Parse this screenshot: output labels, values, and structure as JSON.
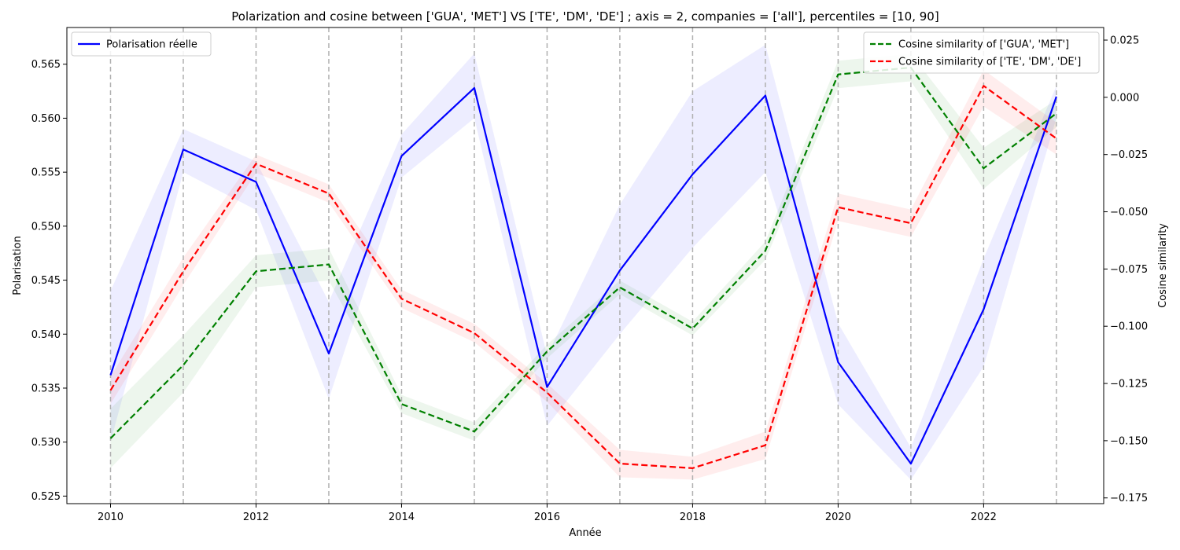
{
  "chart_data": {
    "type": "line",
    "title": "Polarization and cosine between ['GUA', 'MET'] VS ['TE', 'DM', 'DE'] ; axis = 2, companies = ['all'], percentiles = [10, 90]",
    "xlabel": "Année",
    "ylabel_left": "Polarisation",
    "ylabel_right": "Cosine similarity",
    "x": [
      2010,
      2011,
      2012,
      2013,
      2014,
      2015,
      2016,
      2017,
      2018,
      2019,
      2020,
      2021,
      2022,
      2023
    ],
    "x_ticks": [
      2010,
      2012,
      2014,
      2016,
      2018,
      2020,
      2022
    ],
    "xlim": [
      2009.4,
      2023.65
    ],
    "ylim_left": [
      0.5243,
      0.5684
    ],
    "ylim_right": [
      -0.1775,
      0.0305
    ],
    "yticks_left": [
      0.525,
      0.53,
      0.535,
      0.54,
      0.545,
      0.55,
      0.555,
      0.56,
      0.565
    ],
    "yticks_left_labels": [
      "0.525",
      "0.530",
      "0.535",
      "0.540",
      "0.545",
      "0.550",
      "0.555",
      "0.560",
      "0.565"
    ],
    "yticks_right": [
      -0.175,
      -0.15,
      -0.125,
      -0.1,
      -0.075,
      -0.05,
      -0.025,
      0.0,
      0.025
    ],
    "yticks_right_labels": [
      "−0.175",
      "−0.150",
      "−0.125",
      "−0.100",
      "−0.075",
      "−0.050",
      "−0.025",
      "0.000",
      "0.025"
    ],
    "vlines": [
      2010,
      2011,
      2012,
      2013,
      2014,
      2015,
      2016,
      2017,
      2018,
      2019,
      2020,
      2021,
      2022,
      2023
    ],
    "series": [
      {
        "name": "Polarisation réelle",
        "axis": "left",
        "color": "#0000ff",
        "dash": "solid",
        "values": [
          0.5362,
          0.5571,
          0.5541,
          0.5382,
          0.5565,
          0.5628,
          0.5351,
          0.5459,
          0.5548,
          0.5621,
          0.5374,
          0.528,
          0.5423,
          0.562
        ],
        "lower": [
          0.53,
          0.555,
          0.5515,
          0.534,
          0.5545,
          0.56,
          0.5315,
          0.54,
          0.548,
          0.555,
          0.5335,
          0.5265,
          0.537,
          0.56
        ],
        "upper": [
          0.544,
          0.559,
          0.556,
          0.543,
          0.5585,
          0.566,
          0.538,
          0.552,
          0.5625,
          0.5668,
          0.541,
          0.5295,
          0.547,
          0.563
        ]
      },
      {
        "name": "Cosine similarity of ['GUA', 'MET']",
        "axis": "right",
        "color": "#008000",
        "dash": "dashed",
        "values": [
          -0.149,
          -0.117,
          -0.076,
          -0.073,
          -0.134,
          -0.146,
          -0.111,
          -0.083,
          -0.101,
          -0.067,
          0.01,
          0.013,
          -0.031,
          -0.007
        ],
        "lower": [
          -0.162,
          -0.129,
          -0.083,
          -0.08,
          -0.138,
          -0.15,
          -0.114,
          -0.086,
          -0.104,
          -0.071,
          0.004,
          0.007,
          -0.04,
          -0.013
        ],
        "upper": [
          -0.136,
          -0.104,
          -0.069,
          -0.066,
          -0.13,
          -0.142,
          -0.108,
          -0.08,
          -0.098,
          -0.063,
          0.016,
          0.019,
          -0.022,
          -0.001
        ]
      },
      {
        "name": "Cosine similarity of ['TE', 'DM', 'DE']",
        "axis": "right",
        "color": "#ff0000",
        "dash": "dashed",
        "values": [
          -0.128,
          -0.076,
          -0.029,
          -0.042,
          -0.088,
          -0.103,
          -0.129,
          -0.16,
          -0.162,
          -0.152,
          -0.048,
          -0.055,
          0.005,
          -0.018
        ],
        "lower": [
          -0.134,
          -0.082,
          -0.033,
          -0.046,
          -0.092,
          -0.107,
          -0.133,
          -0.166,
          -0.167,
          -0.158,
          -0.054,
          -0.061,
          -0.004,
          -0.025
        ],
        "upper": [
          -0.122,
          -0.07,
          -0.025,
          -0.038,
          -0.084,
          -0.099,
          -0.125,
          -0.154,
          -0.157,
          -0.146,
          -0.042,
          -0.049,
          0.012,
          -0.011
        ]
      }
    ],
    "legend_left": {
      "placement": "top-left",
      "entries": [
        "Polarisation réelle"
      ]
    },
    "legend_right": {
      "placement": "top-right",
      "entries": [
        "Cosine similarity of ['GUA', 'MET']",
        "Cosine similarity of ['TE', 'DM', 'DE']"
      ]
    },
    "grid": false
  }
}
